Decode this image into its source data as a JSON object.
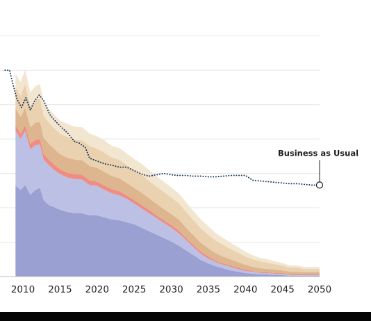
{
  "chart_data": {
    "type": "area",
    "title": "",
    "xlabel": "",
    "ylabel": "",
    "x_ticks": [
      "2010",
      "2015",
      "2020",
      "2025",
      "2030",
      "2035",
      "2040",
      "2045",
      "2050"
    ],
    "x": [
      2009,
      2009.7,
      2010.3,
      2011,
      2011.7,
      2012.3,
      2012.8,
      2013.5,
      2014.2,
      2015,
      2016,
      2017,
      2018,
      2019,
      2020,
      2021,
      2022,
      2023,
      2024,
      2025,
      2026,
      2027,
      2028,
      2029,
      2030,
      2031,
      2032,
      2033,
      2034,
      2035,
      2036,
      2037,
      2038,
      2039,
      2040,
      2041,
      2042,
      2043,
      2044,
      2045,
      2046,
      2047,
      2048,
      2049,
      2050
    ],
    "series": [
      {
        "values": [
          13.2,
          12.6,
          13.3,
          11.9,
          12.6,
          12.9,
          11.1,
          10.4,
          10.1,
          9.7,
          9.4,
          9.2,
          9.2,
          8.9,
          8.9,
          8.6,
          8.3,
          8.2,
          7.9,
          7.6,
          7.1,
          6.6,
          6.1,
          5.6,
          5.1,
          4.5,
          3.8,
          3.1,
          2.4,
          1.9,
          1.5,
          1.2,
          0.9,
          0.7,
          0.5,
          0.4,
          0.3,
          0.3,
          0.2,
          0.2,
          0.1,
          0.1,
          0.1,
          0.1,
          0.1
        ],
        "color": "#9aa0d2"
      },
      {
        "values": [
          8.0,
          7.4,
          7.9,
          6.6,
          6.5,
          6.3,
          5.9,
          5.8,
          5.4,
          5.2,
          5.0,
          5.0,
          4.9,
          4.4,
          4.3,
          4.0,
          3.8,
          3.6,
          3.4,
          3.0,
          2.8,
          2.6,
          2.4,
          2.2,
          2.0,
          1.8,
          1.5,
          1.2,
          0.9,
          0.7,
          0.6,
          0.5,
          0.5,
          0.4,
          0.3,
          0.3,
          0.2,
          0.2,
          0.2,
          0.2,
          0.1,
          0.1,
          0.1,
          0.1,
          0.1
        ],
        "color": "#bcc0e4"
      },
      {
        "values": [
          0.8,
          0.8,
          0.8,
          0.8,
          0.8,
          0.8,
          0.8,
          0.8,
          0.8,
          0.7,
          0.7,
          0.7,
          0.7,
          0.7,
          0.6,
          0.6,
          0.6,
          0.6,
          0.5,
          0.5,
          0.5,
          0.5,
          0.4,
          0.4,
          0.4,
          0.4,
          0.3,
          0.3,
          0.3,
          0.3,
          0.2,
          0.2,
          0.2,
          0.2,
          0.2,
          0.1,
          0.1,
          0.1,
          0.1,
          0.1,
          0.1,
          0.1,
          0.1,
          0.1,
          0.1
        ],
        "color": "#ef8d84"
      },
      {
        "values": [
          2.5,
          2.4,
          2.6,
          2.4,
          2.5,
          2.5,
          2.4,
          2.3,
          2.3,
          2.2,
          2.2,
          2.1,
          2.1,
          2.1,
          2.0,
          2.0,
          1.9,
          1.9,
          1.8,
          1.8,
          1.8,
          1.7,
          1.7,
          1.6,
          1.6,
          1.6,
          1.5,
          1.4,
          1.3,
          1.2,
          1.1,
          1.0,
          0.9,
          0.8,
          0.7,
          0.6,
          0.6,
          0.5,
          0.5,
          0.4,
          0.4,
          0.4,
          0.3,
          0.3,
          0.3
        ],
        "color": "#ddb58f"
      },
      {
        "values": [
          3.0,
          3.1,
          3.4,
          3.1,
          3.3,
          3.4,
          3.2,
          3.1,
          3.0,
          3.0,
          3.0,
          2.9,
          2.9,
          2.9,
          2.8,
          2.8,
          2.7,
          2.7,
          2.6,
          2.6,
          2.6,
          2.5,
          2.5,
          2.5,
          2.4,
          2.4,
          2.3,
          2.2,
          2.1,
          2.0,
          1.8,
          1.7,
          1.5,
          1.4,
          1.2,
          1.1,
          1.0,
          0.9,
          0.8,
          0.7,
          0.6,
          0.6,
          0.5,
          0.5,
          0.5
        ],
        "color": "#ead2b0"
      },
      {
        "values": [
          2.0,
          2.0,
          2.1,
          2.0,
          2.0,
          2.1,
          2.0,
          2.0,
          2.0,
          1.9,
          1.9,
          1.9,
          1.9,
          1.8,
          1.8,
          1.8,
          1.7,
          1.7,
          1.7,
          1.6,
          1.6,
          1.6,
          1.5,
          1.5,
          1.5,
          1.4,
          1.4,
          1.3,
          1.3,
          1.2,
          1.1,
          1.0,
          0.9,
          0.8,
          0.7,
          0.6,
          0.5,
          0.5,
          0.4,
          0.4,
          0.3,
          0.3,
          0.3,
          0.3,
          0.3
        ],
        "color": "#f3e6d0"
      }
    ],
    "business_as_usual": {
      "label": "Business as Usual",
      "color": "#1f3a5c",
      "x": [
        2007.6,
        2008.2,
        2008.6,
        2009.2,
        2009.8,
        2010.4,
        2011,
        2011.6,
        2012.2,
        2012.8,
        2013.6,
        2014.2,
        2015,
        2016,
        2017,
        2017.6,
        2018.4,
        2019,
        2020,
        2021,
        2022,
        2023,
        2024,
        2025,
        2026,
        2027,
        2028,
        2029,
        2030,
        2031,
        2032,
        2033,
        2034,
        2035,
        2036,
        2037,
        2038,
        2039,
        2040,
        2041,
        2042,
        2043,
        2044,
        2045,
        2046,
        2047,
        2048,
        2049,
        2050
      ],
      "values": [
        30.0,
        30.0,
        28.2,
        25.8,
        24.6,
        26.0,
        24.2,
        25.6,
        26.4,
        25.6,
        23.6,
        22.8,
        21.9,
        20.9,
        19.6,
        19.4,
        18.8,
        17.2,
        16.8,
        16.4,
        16.2,
        15.9,
        15.9,
        15.4,
        14.9,
        14.6,
        14.8,
        15.0,
        14.8,
        14.7,
        14.7,
        14.6,
        14.6,
        14.5,
        14.5,
        14.6,
        14.7,
        14.7,
        14.7,
        14.0,
        13.9,
        13.8,
        13.7,
        13.6,
        13.5,
        13.5,
        13.4,
        13.3,
        13.3
      ]
    },
    "xlim": [
      2007.5,
      2050
    ],
    "ylim": [
      0,
      38
    ],
    "grid": true,
    "legend": "none"
  }
}
